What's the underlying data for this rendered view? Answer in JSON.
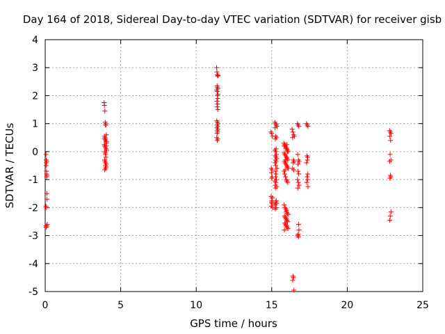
{
  "colors": {
    "points": "#ff0000",
    "grid": "#a0a0a0",
    "frame": "#000000"
  },
  "chart_data": {
    "type": "scatter",
    "title": "Day 164 of 2018, Sidereal Day-to-day VTEC variation (SDTVAR) for receiver gisb",
    "xlabel": "GPS time / hours",
    "ylabel": "SDTVAR / TECUs",
    "xlim": [
      0,
      25
    ],
    "ylim": [
      -5,
      4
    ],
    "xticks": [
      0,
      5,
      10,
      15,
      20,
      25
    ],
    "yticks": [
      -5,
      -4,
      -3,
      -2,
      -1,
      0,
      1,
      2,
      3,
      4
    ],
    "grid": true,
    "marker": "+",
    "series": [
      {
        "name": "SDTVAR",
        "x": [
          0.05,
          0.07,
          0.08,
          0.06,
          0.09,
          0.1,
          0.1,
          0.11,
          0.12,
          0.05,
          0.06,
          0.13,
          0.08,
          0.07,
          0.1,
          0.11,
          3.9,
          3.92,
          3.95,
          3.97,
          4.0,
          4.02,
          4.05,
          3.93,
          3.96,
          3.98,
          4.01,
          4.03,
          4.06,
          3.91,
          3.94,
          3.99,
          4.04,
          4.07,
          3.95,
          3.97,
          4.0,
          4.02,
          3.93,
          3.96,
          4.01,
          4.05,
          3.98,
          4.03,
          4.0,
          3.94,
          4.06,
          3.92,
          4.04,
          3.99,
          11.35,
          11.37,
          11.4,
          11.42,
          11.45,
          11.38,
          11.41,
          11.43,
          11.36,
          11.39,
          11.44,
          11.4,
          11.42,
          11.37,
          11.41,
          11.38,
          11.43,
          11.36,
          11.4,
          11.45,
          11.39,
          11.42,
          11.37,
          11.44,
          11.4,
          11.41,
          11.38,
          11.36,
          11.43,
          11.39,
          14.95,
          15.0,
          15.05,
          14.97,
          15.02,
          14.98,
          15.03,
          15.0,
          14.96,
          15.04,
          15.01,
          14.99,
          15.02,
          14.97,
          15.05,
          15.2,
          15.25,
          15.3,
          15.35,
          15.22,
          15.27,
          15.32,
          15.24,
          15.29,
          15.21,
          15.26,
          15.31,
          15.23,
          15.28,
          15.33,
          15.25,
          15.3,
          15.22,
          15.27,
          15.34,
          15.24,
          15.29,
          15.26,
          15.31,
          15.21,
          15.28,
          15.23,
          15.33,
          15.25,
          15.3,
          15.27,
          15.32,
          15.22,
          15.29,
          15.24,
          15.8,
          15.85,
          15.9,
          15.95,
          16.0,
          16.05,
          16.1,
          15.82,
          15.87,
          15.92,
          15.97,
          16.02,
          16.07,
          15.84,
          15.89,
          15.94,
          15.99,
          16.04,
          16.09,
          15.81,
          15.86,
          15.91,
          15.96,
          16.01,
          16.06,
          15.83,
          15.88,
          15.93,
          15.98,
          16.03,
          16.08,
          15.85,
          15.9,
          15.95,
          16.0,
          16.05,
          15.87,
          15.92,
          15.97,
          16.02,
          16.07,
          15.84,
          15.89,
          15.94,
          15.99,
          15.82,
          15.91,
          16.04,
          15.96,
          16.01,
          16.35,
          16.4,
          16.45,
          16.5,
          16.38,
          16.43,
          16.48,
          16.42,
          16.36,
          16.46,
          16.41,
          16.44,
          16.39,
          16.47,
          16.7,
          16.75,
          16.8,
          16.72,
          16.77,
          16.82,
          16.74,
          16.79,
          16.71,
          16.76,
          16.81,
          16.73,
          16.78,
          16.8,
          16.75,
          16.72,
          16.77,
          16.74,
          17.3,
          17.35,
          17.4,
          17.33,
          17.38,
          17.36,
          17.31,
          17.39,
          17.34,
          17.37,
          17.32,
          17.4,
          22.8,
          22.85,
          22.9,
          22.82,
          22.87,
          22.84,
          22.89,
          22.81,
          22.86,
          22.88,
          22.83,
          22.9,
          22.85,
          22.82
        ],
        "y": [
          -0.1,
          -0.3,
          -0.4,
          -0.5,
          -0.7,
          -0.8,
          -0.9,
          -1.5,
          -1.7,
          -1.95,
          -2.0,
          -2.6,
          -2.65,
          -2.7,
          -0.35,
          -0.85,
          1.75,
          1.65,
          1.45,
          1.05,
          1.0,
          0.95,
          0.6,
          0.55,
          0.5,
          0.45,
          0.4,
          0.35,
          0.3,
          0.25,
          0.2,
          0.15,
          0.1,
          0.05,
          0.0,
          -0.05,
          -0.1,
          -0.2,
          -0.3,
          -0.35,
          -0.4,
          -0.45,
          -0.5,
          -0.55,
          -0.6,
          -0.65,
          0.35,
          0.45,
          0.2,
          0.95,
          3.0,
          2.85,
          2.75,
          2.7,
          2.72,
          2.35,
          2.3,
          2.25,
          2.2,
          2.15,
          2.05,
          2.0,
          1.9,
          1.8,
          1.7,
          1.6,
          1.5,
          1.1,
          1.05,
          1.0,
          0.95,
          0.9,
          0.85,
          0.8,
          0.75,
          0.7,
          0.65,
          0.5,
          0.45,
          0.4,
          0.7,
          0.65,
          0.55,
          -0.6,
          -0.65,
          -0.75,
          -0.9,
          -0.95,
          -1.6,
          -1.65,
          -1.75,
          -1.8,
          -1.85,
          -1.95,
          -2.0,
          1.05,
          1.0,
          0.95,
          0.9,
          0.85,
          0.55,
          0.5,
          0.45,
          0.1,
          0.05,
          0.0,
          -0.1,
          -0.15,
          -0.2,
          -0.25,
          -0.3,
          -0.35,
          -0.4,
          -0.5,
          -0.6,
          -0.7,
          -0.8,
          -0.9,
          -1.0,
          -1.05,
          -1.1,
          -1.2,
          -1.25,
          -1.3,
          -1.75,
          -1.8,
          -1.85,
          -1.9,
          -2.0,
          -2.05,
          0.3,
          0.25,
          0.2,
          0.15,
          0.1,
          0.05,
          0.0,
          -0.05,
          -0.1,
          -0.15,
          -0.2,
          -0.25,
          -0.3,
          -0.35,
          -0.4,
          -0.45,
          -0.5,
          -0.55,
          -0.6,
          -0.7,
          -0.8,
          -0.9,
          -1.0,
          -1.05,
          -1.1,
          -1.9,
          -2.0,
          -2.05,
          -2.1,
          -2.2,
          -2.25,
          -2.3,
          -2.35,
          -2.4,
          -2.45,
          -2.5,
          -2.55,
          -2.6,
          -2.65,
          -2.7,
          -2.75,
          -2.8,
          -0.65,
          0.1,
          -0.2,
          0.2,
          -0.3,
          0.0,
          -2.15,
          0.25,
          0.8,
          0.7,
          0.6,
          0.55,
          0.5,
          -0.3,
          -0.35,
          -0.4,
          -0.6,
          -0.65,
          -4.45,
          -4.5,
          -4.6,
          -4.95,
          1.0,
          0.95,
          0.9,
          -0.1,
          -0.3,
          -0.35,
          -0.45,
          -0.8,
          -1.0,
          -1.1,
          -1.2,
          -1.3,
          -2.6,
          -2.8,
          -2.95,
          -3.0,
          -3.05,
          -0.7,
          1.0,
          0.95,
          0.9,
          -0.15,
          -0.2,
          -0.3,
          -0.4,
          -0.8,
          -0.9,
          -1.0,
          -1.1,
          -1.25,
          0.75,
          0.7,
          0.65,
          0.55,
          0.4,
          -0.1,
          -0.3,
          -0.35,
          -0.85,
          -0.9,
          -0.95,
          -2.15,
          -2.3,
          -2.45
        ]
      }
    ]
  }
}
